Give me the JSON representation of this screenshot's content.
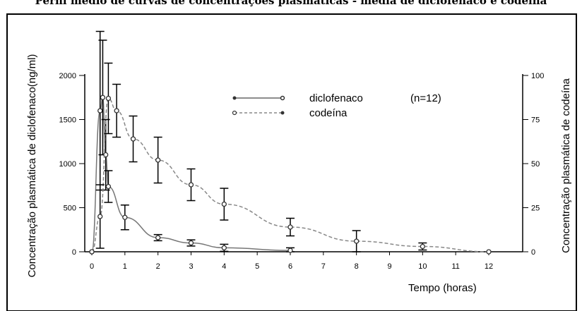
{
  "title": "Perfil médio de curvas de concentrações plasmáticas - média de diclofenaco e codeína",
  "chart_data": {
    "type": "line",
    "x_axis": {
      "label": "Tempo (horas)",
      "range": [
        0,
        12
      ],
      "ticks": [
        0,
        1,
        2,
        3,
        4,
        5,
        6,
        7,
        8,
        9,
        10,
        11,
        12
      ]
    },
    "y_left": {
      "label": "Concentração plasmática de diclofenaco(ng/ml)",
      "range": [
        0,
        2000
      ],
      "ticks": [
        0,
        500,
        1000,
        1500,
        2000
      ]
    },
    "y_right": {
      "label": "Concentração plasmática de codeína",
      "range": [
        0,
        100
      ],
      "ticks": [
        0,
        25,
        50,
        75,
        100
      ]
    },
    "legend": {
      "position": "top-center",
      "note": "(n=12)"
    },
    "series": [
      {
        "name": "diclofenaco",
        "axis": "left",
        "style": "solid",
        "points": [
          {
            "x": 0,
            "y": 0
          },
          {
            "x": 0.25,
            "y": 1600,
            "err": 900
          },
          {
            "x": 0.33,
            "y": 1750,
            "err": 650
          },
          {
            "x": 0.42,
            "y": 1100,
            "err": 400
          },
          {
            "x": 0.5,
            "y": 740,
            "err": 180
          },
          {
            "x": 1,
            "y": 390,
            "err": 140
          },
          {
            "x": 2,
            "y": 160,
            "err": 35
          },
          {
            "x": 3,
            "y": 100,
            "err": 35
          },
          {
            "x": 4,
            "y": 45,
            "err": 40
          },
          {
            "x": 6,
            "y": 15,
            "err": 30
          }
        ]
      },
      {
        "name": "codeína",
        "axis": "right",
        "style": "dashed",
        "points": [
          {
            "x": 0,
            "y": 0
          },
          {
            "x": 0.25,
            "y": 20,
            "err": 18
          },
          {
            "x": 0.5,
            "y": 87,
            "err": 20
          },
          {
            "x": 0.75,
            "y": 80,
            "err": 15
          },
          {
            "x": 1.25,
            "y": 64,
            "err": 13
          },
          {
            "x": 2,
            "y": 52,
            "err": 13
          },
          {
            "x": 3,
            "y": 38,
            "err": 9
          },
          {
            "x": 4,
            "y": 27,
            "err": 9
          },
          {
            "x": 6,
            "y": 14,
            "err": 5
          },
          {
            "x": 8,
            "y": 6,
            "err": 6
          },
          {
            "x": 10,
            "y": 3,
            "err": 2
          },
          {
            "x": 12,
            "y": 0
          }
        ]
      }
    ]
  }
}
